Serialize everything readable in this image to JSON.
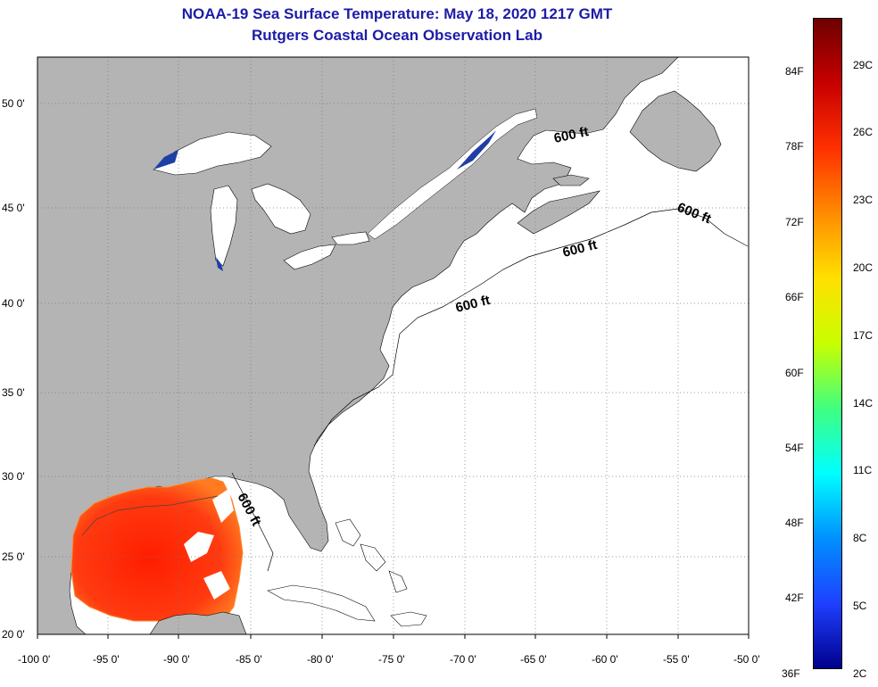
{
  "header": {
    "title": "NOAA-19 Sea Surface Temperature:  May 18, 2020 1217 GMT",
    "subtitle": "Rutgers Coastal Ocean Observation Lab"
  },
  "axes": {
    "longitude_labels": [
      "-100 0'",
      "-95 0'",
      "-90 0'",
      "-85 0'",
      "-80 0'",
      "-75 0'",
      "-70 0'",
      "-65 0'",
      "-60 0'",
      "-55 0'",
      "-50 0'"
    ],
    "latitude_labels": [
      "50 0'",
      "45 0'",
      "40 0'",
      "35 0'",
      "30 0'",
      "25 0'",
      "20 0'"
    ]
  },
  "contour_labels": [
    "600 ft",
    "600 ft",
    "600 ft",
    "600 ft",
    "600 ft"
  ],
  "colorbar": {
    "fahrenheit_labels": [
      "84F",
      "78F",
      "72F",
      "66F",
      "60F",
      "54F",
      "48F",
      "42F",
      "36F"
    ],
    "celsius_labels": [
      "29C",
      "26C",
      "23C",
      "20C",
      "17C",
      "14C",
      "11C",
      "8C",
      "5C",
      "2C"
    ],
    "colors": [
      "#6e0000",
      "#c80000",
      "#ff3000",
      "#ff8c00",
      "#ffe000",
      "#c8ff00",
      "#40ff80",
      "#00ffff",
      "#0090ff",
      "#1e40ff",
      "#00008c"
    ]
  },
  "colors": {
    "land": "#b4b4b4",
    "water": "#ffffff",
    "title": "#1c1ca8",
    "warm_sst": "#ff3a10",
    "gulf_edge": "#ff8a30",
    "lake_cold": "#1f3fa6"
  }
}
